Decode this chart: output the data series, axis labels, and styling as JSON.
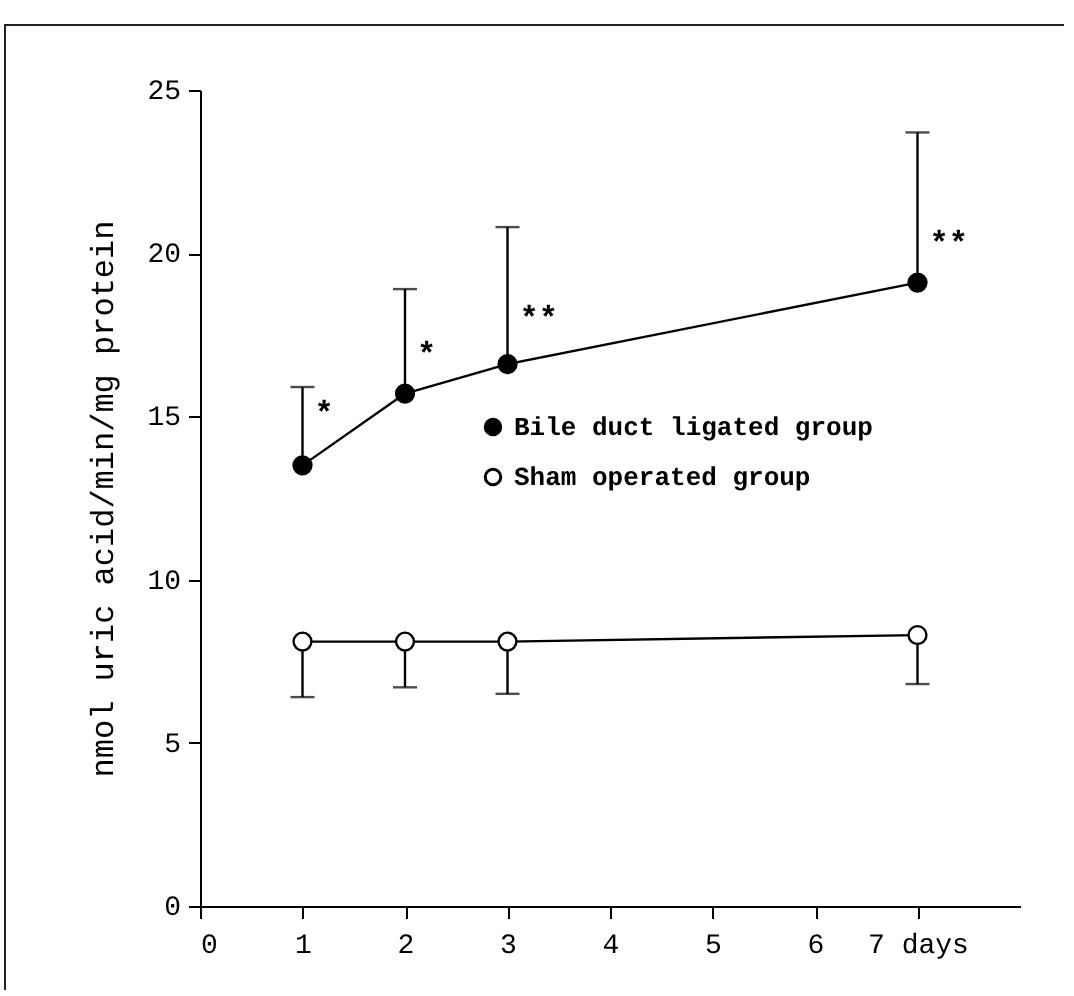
{
  "chart_data": {
    "type": "line",
    "ylabel": "nmol uric acid/min/mg protein",
    "x": [
      1,
      2,
      3,
      7
    ],
    "series": [
      {
        "name": "Bile duct ligated group",
        "color": "#000000",
        "values": [
          13.5,
          15.7,
          16.6,
          19.1
        ],
        "errors": [
          [
            13.5,
            15.9
          ],
          [
            15.7,
            18.9
          ],
          [
            16.6,
            20.8
          ],
          [
            19.1,
            23.7
          ]
        ]
      },
      {
        "name": "Sham operated group",
        "color": "#000000",
        "values": [
          8.1,
          8.1,
          8.1,
          8.3
        ],
        "errors": [
          [
            6.4,
            8.1
          ],
          [
            6.7,
            8.1
          ],
          [
            6.5,
            8.1
          ],
          [
            6.8,
            8.3
          ]
        ]
      }
    ],
    "xlim": [
      0,
      8
    ],
    "xticks": [
      0,
      1,
      2,
      3,
      4,
      5,
      6,
      {
        "value": 7,
        "label": "7 days"
      }
    ],
    "ylim": [
      0,
      25
    ],
    "yticks": [
      0,
      5,
      10,
      15,
      20,
      25
    ],
    "marker": "circle",
    "line_style": "solid",
    "grid": false,
    "legend": "right",
    "annotations": [
      {
        "text": "*",
        "x": 1,
        "y": 15.1
      },
      {
        "text": "*",
        "x": 2,
        "y": 16.9
      },
      {
        "text": "**",
        "x": 3,
        "y": 18.0
      },
      {
        "text": "**",
        "x": 7,
        "y": 20.3
      }
    ]
  }
}
